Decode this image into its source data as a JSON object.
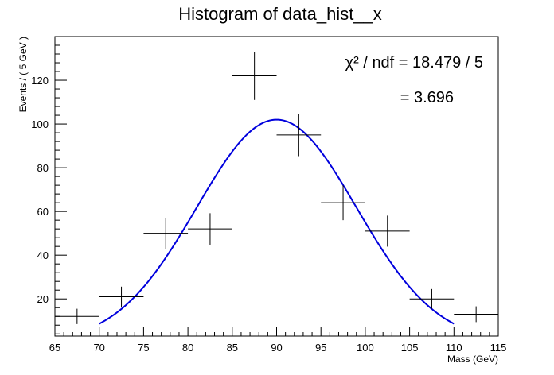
{
  "chart_data": {
    "type": "scatter",
    "title": "Histogram of data_hist__x",
    "xlabel": "Mass (GeV)",
    "ylabel": "Events / ( 5 GeV )",
    "xlim": [
      65,
      115
    ],
    "ylim": [
      3,
      140
    ],
    "x_ticks": [
      65,
      70,
      75,
      80,
      85,
      90,
      95,
      100,
      105,
      110,
      115
    ],
    "y_ticks": [
      20,
      40,
      60,
      80,
      100,
      120
    ],
    "grid": false,
    "series": [
      {
        "style": "points-with-error-bars",
        "color": "#000000",
        "points": [
          {
            "x": 67.5,
            "y": 12,
            "yerr": 3.5,
            "xerr": 2.5
          },
          {
            "x": 72.5,
            "y": 21,
            "yerr": 4.6,
            "xerr": 2.5
          },
          {
            "x": 77.5,
            "y": 50,
            "yerr": 7.1,
            "xerr": 2.5
          },
          {
            "x": 82.5,
            "y": 52,
            "yerr": 7.2,
            "xerr": 2.5
          },
          {
            "x": 87.5,
            "y": 122,
            "yerr": 11.0,
            "xerr": 2.5
          },
          {
            "x": 92.5,
            "y": 95,
            "yerr": 9.7,
            "xerr": 2.5
          },
          {
            "x": 97.5,
            "y": 64,
            "yerr": 8.0,
            "xerr": 2.5
          },
          {
            "x": 102.5,
            "y": 51,
            "yerr": 7.1,
            "xerr": 2.5
          },
          {
            "x": 107.5,
            "y": 20,
            "yerr": 4.5,
            "xerr": 2.5
          },
          {
            "x": 112.5,
            "y": 13,
            "yerr": 3.6,
            "xerr": 2.5
          }
        ]
      },
      {
        "style": "fit-curve",
        "color": "#0000dd",
        "function": "gaussian",
        "amplitude": 102,
        "mean": 90,
        "sigma": 9,
        "x_range": [
          70,
          110
        ]
      }
    ],
    "annotation_lines": [
      "χ² / ndf = 18.479 / 5",
      "= 3.696"
    ]
  }
}
